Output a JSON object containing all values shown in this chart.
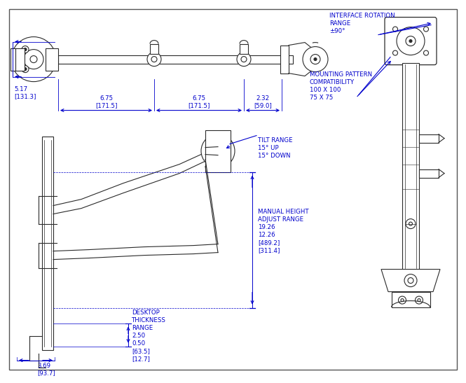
{
  "bg_color": "#ffffff",
  "line_color": "#2a2a2a",
  "dim_color": "#0000cc",
  "fig_width": 6.45,
  "fig_height": 5.21,
  "annotations": {
    "interface_rotation": "INTERFACE ROTATION\nRANGE\n±90°",
    "mounting_pattern": "MOUNTING PATTERN\nCOMPATIBILITY\n100 X 100\n75 X 75",
    "tilt_range": "TILT RANGE\n15° UP\n15° DOWN",
    "manual_height": "MANUAL HEIGHT\nADJUST RANGE\n19.26\n12.26\n[489.2]\n[311.4]",
    "desktop_thickness": "DESKTOP\nTHICKNESS\nRANGE\n2.50\n0.50\n[63.5]\n[12.7]"
  },
  "dimensions": {
    "d1_label": "5.17\n[131.3]",
    "d2_label": "6.75\n[171.5]",
    "d3_label": "6.75\n[171.5]",
    "d4_label": "2.32\n[59.0]",
    "d5_label": "3.69\n[93.7]"
  }
}
